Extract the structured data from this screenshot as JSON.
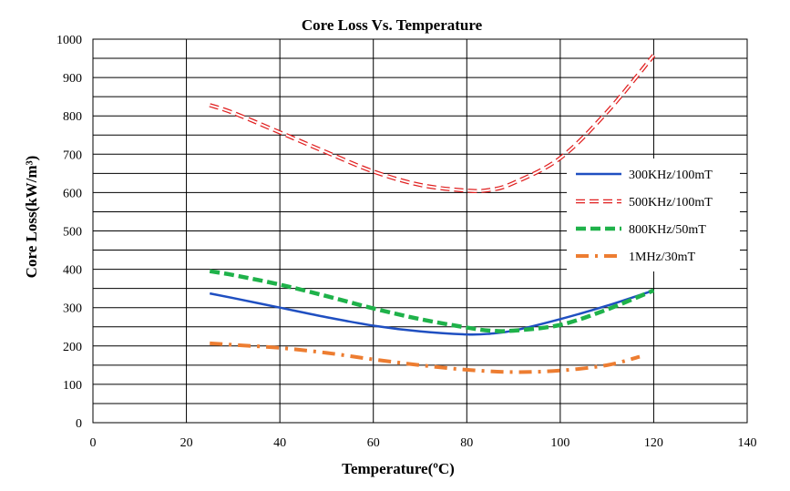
{
  "chart_data": {
    "type": "line",
    "title": "Core Loss Vs. Temperature",
    "xlabel": "Temperature(ºC)",
    "ylabel": "Core Loss(kW/m³)",
    "xlim": [
      0,
      140
    ],
    "ylim": [
      0,
      1000
    ],
    "xticks": [
      0,
      20,
      40,
      60,
      80,
      100,
      120,
      140
    ],
    "yticks": [
      0,
      100,
      200,
      300,
      400,
      500,
      600,
      700,
      800,
      900,
      1000
    ],
    "grid": true,
    "legend_position": "right",
    "series": [
      {
        "name": "300KHz/100mT",
        "color": "#1f4fc1",
        "style": "solid",
        "x": [
          25,
          30,
          40,
          50,
          60,
          70,
          80,
          85,
          90,
          100,
          110,
          120
        ],
        "y": [
          337,
          325,
          300,
          275,
          253,
          238,
          230,
          232,
          240,
          270,
          305,
          345
        ]
      },
      {
        "name": "500KHz/100mT",
        "color": "#e02020",
        "style": "dashed-hollow",
        "x": [
          25,
          30,
          40,
          50,
          60,
          70,
          80,
          85,
          90,
          100,
          110,
          120
        ],
        "y": [
          828,
          808,
          757,
          705,
          655,
          620,
          605,
          607,
          625,
          690,
          810,
          958
        ]
      },
      {
        "name": "800KHz/50mT",
        "color": "#1fb24a",
        "style": "dashed",
        "x": [
          25,
          30,
          40,
          50,
          60,
          70,
          80,
          85,
          90,
          100,
          110,
          120
        ],
        "y": [
          395,
          385,
          360,
          330,
          298,
          270,
          248,
          240,
          240,
          255,
          295,
          345
        ]
      },
      {
        "name": "1MHz/30mT",
        "color": "#ed7d31",
        "style": "dash-dot",
        "x": [
          25,
          30,
          40,
          50,
          60,
          70,
          80,
          90,
          100,
          110,
          117
        ],
        "y": [
          207,
          203,
          195,
          182,
          165,
          150,
          138,
          132,
          136,
          150,
          172
        ]
      }
    ]
  }
}
